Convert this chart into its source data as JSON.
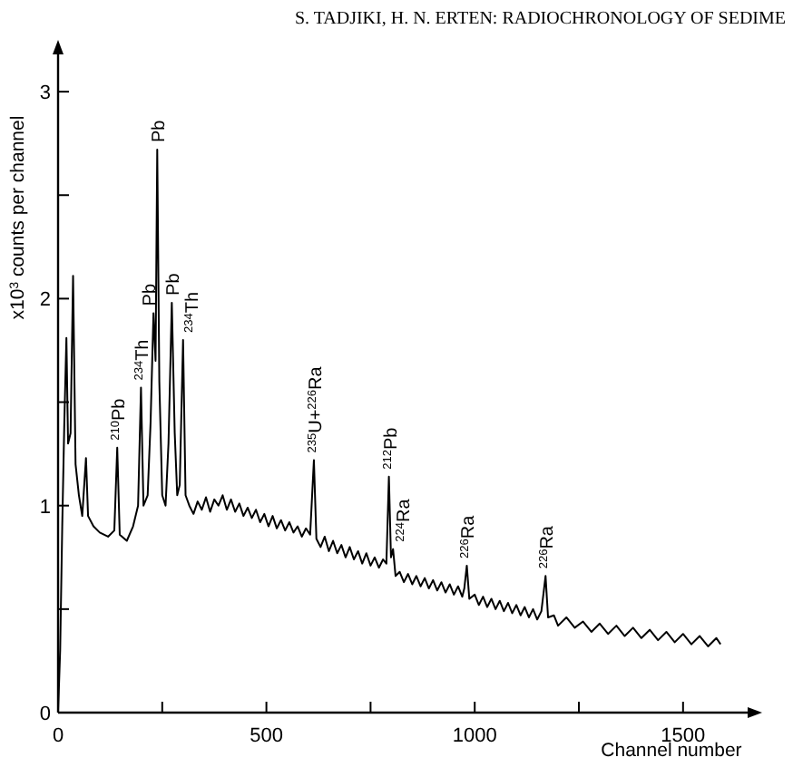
{
  "chart_data": {
    "type": "line",
    "xlabel": "Channel number",
    "ylabel": "x10$^{3}$ counts per channel",
    "annotations": [
      "S. TADJIKI, H. N. ERTEN: RADIOCHRONOLOGY OF SEDIME",
      {
        "text": "$^{210}$Pb",
        "x": 142,
        "y": 1.28
      },
      {
        "text": "$^{234}$Th",
        "x": 199,
        "y": 1.57
      },
      {
        "text": "Pb",
        "x": 229,
        "y": 1.93
      },
      {
        "text": "Pb",
        "x": 238,
        "y": 2.72
      },
      {
        "text": "Pb",
        "x": 273,
        "y": 1.98
      },
      {
        "text": "$^{234}$Th",
        "x": 300,
        "y": 1.8
      },
      {
        "text": "$^{235}$U+$^{226}$Ra",
        "x": 614,
        "y": 1.22
      },
      {
        "text": "$^{212}$Pb",
        "x": 794,
        "y": 1.14
      },
      {
        "text": "$^{224}$Ra",
        "x": 804,
        "y": 0.79
      },
      {
        "text": "$^{226}$Ra",
        "x": 981,
        "y": 0.71
      },
      {
        "text": "$^{226}$Ra",
        "x": 1170,
        "y": 0.66
      }
    ],
    "x": [
      0,
      5,
      10,
      15,
      20,
      24,
      30,
      36,
      42,
      50,
      58,
      67,
      72,
      85,
      100,
      120,
      135,
      142,
      148,
      165,
      180,
      192,
      199,
      205,
      215,
      222,
      229,
      234,
      238,
      243,
      250,
      258,
      265,
      273,
      280,
      286,
      292,
      300,
      306,
      315,
      325,
      335,
      345,
      355,
      365,
      375,
      385,
      395,
      405,
      415,
      425,
      435,
      445,
      455,
      465,
      475,
      485,
      495,
      505,
      515,
      525,
      535,
      545,
      555,
      565,
      575,
      585,
      595,
      605,
      614,
      620,
      630,
      640,
      650,
      660,
      670,
      680,
      690,
      700,
      710,
      720,
      730,
      740,
      750,
      760,
      770,
      780,
      788,
      794,
      799,
      804,
      810,
      820,
      830,
      840,
      850,
      860,
      870,
      880,
      890,
      900,
      910,
      920,
      930,
      940,
      950,
      960,
      970,
      975,
      981,
      987,
      1000,
      1010,
      1020,
      1030,
      1040,
      1050,
      1060,
      1070,
      1080,
      1090,
      1100,
      1110,
      1120,
      1130,
      1140,
      1150,
      1160,
      1170,
      1176,
      1190,
      1200,
      1220,
      1240,
      1260,
      1280,
      1300,
      1320,
      1340,
      1360,
      1380,
      1400,
      1420,
      1440,
      1460,
      1480,
      1500,
      1520,
      1540,
      1560,
      1580,
      1590
    ],
    "values": [
      0,
      0.3,
      0.9,
      1.4,
      1.81,
      1.3,
      1.35,
      2.11,
      1.2,
      1.05,
      0.95,
      1.23,
      0.95,
      0.9,
      0.87,
      0.85,
      0.88,
      1.28,
      0.86,
      0.83,
      0.9,
      1.0,
      1.57,
      1.0,
      1.05,
      1.4,
      1.93,
      1.7,
      2.72,
      1.6,
      1.05,
      1.0,
      1.3,
      1.98,
      1.35,
      1.05,
      1.1,
      1.8,
      1.05,
      1.0,
      0.96,
      1.02,
      0.98,
      1.04,
      0.97,
      1.03,
      1.0,
      1.05,
      0.98,
      1.03,
      0.97,
      1.01,
      0.95,
      0.99,
      0.94,
      0.98,
      0.92,
      0.96,
      0.9,
      0.95,
      0.89,
      0.93,
      0.88,
      0.92,
      0.87,
      0.9,
      0.85,
      0.89,
      0.86,
      1.22,
      0.84,
      0.8,
      0.85,
      0.78,
      0.83,
      0.77,
      0.81,
      0.75,
      0.8,
      0.74,
      0.78,
      0.72,
      0.77,
      0.71,
      0.75,
      0.7,
      0.74,
      0.72,
      1.14,
      0.75,
      0.79,
      0.66,
      0.68,
      0.63,
      0.67,
      0.62,
      0.66,
      0.61,
      0.65,
      0.6,
      0.64,
      0.59,
      0.63,
      0.58,
      0.62,
      0.57,
      0.61,
      0.56,
      0.6,
      0.71,
      0.55,
      0.57,
      0.52,
      0.56,
      0.51,
      0.55,
      0.5,
      0.54,
      0.49,
      0.53,
      0.48,
      0.52,
      0.47,
      0.51,
      0.46,
      0.5,
      0.45,
      0.49,
      0.66,
      0.46,
      0.47,
      0.42,
      0.46,
      0.41,
      0.44,
      0.39,
      0.43,
      0.38,
      0.42,
      0.37,
      0.41,
      0.36,
      0.4,
      0.35,
      0.39,
      0.34,
      0.38,
      0.33,
      0.37,
      0.32,
      0.36,
      0.33
    ],
    "color": "#000000",
    "xlim": [
      0,
      1655
    ],
    "ylim": [
      0,
      3.18
    ],
    "xticks": [
      0,
      {
        "value": 250,
        "label": null
      },
      500,
      {
        "value": 750,
        "label": null
      },
      1000,
      {
        "value": 1250,
        "label": null
      },
      1500
    ],
    "yticks": [
      0,
      {
        "value": 0.5,
        "label": null
      },
      1,
      {
        "value": 1.5,
        "label": null
      },
      2,
      {
        "value": 2.5,
        "label": null
      },
      3
    ],
    "grid": false,
    "marker": "none",
    "line_style": "solid"
  }
}
